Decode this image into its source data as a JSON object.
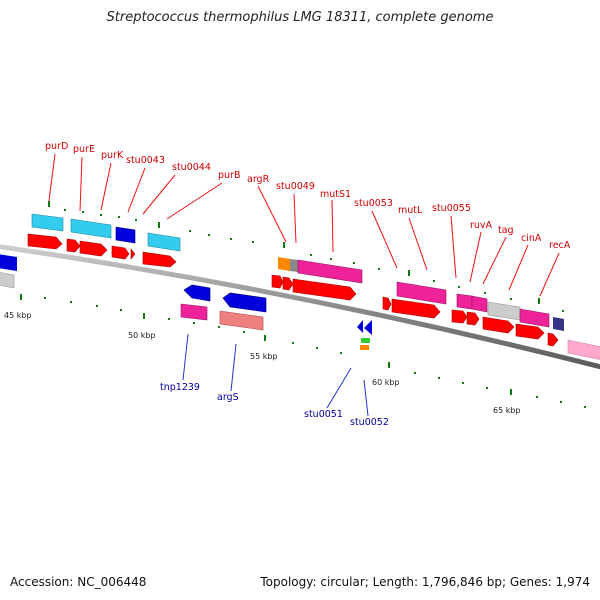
{
  "header": {
    "title": "Streptococcus thermophilus LMG 18311, complete genome"
  },
  "footer": {
    "accession": "Accession: NC_006448",
    "topology": "Topology: circular; Length: 1,796,846 bp; Genes: 1,974"
  },
  "scale_labels": [
    "45 kbp",
    "50 kbp",
    "55 kbp",
    "60 kbp",
    "65 kbp"
  ],
  "genes_top": [
    "purD",
    "purE",
    "purK",
    "stu0043",
    "stu0044",
    "purB",
    "argR",
    "stu0049",
    "mutS1",
    "stu0053",
    "mutL",
    "stu0055",
    "ruvA",
    "tag",
    "cinA",
    "recA"
  ],
  "genes_bottom": [
    "tnp1239",
    "argS",
    "stu0051",
    "stu0052"
  ],
  "colors": {
    "cds_red": "#ff0000",
    "cyan": "#33ccee",
    "blue": "#0000dd",
    "magenta": "#ee2299",
    "gray": "#cccccc",
    "salmon": "#ee8080",
    "orange": "#ff8800",
    "green": "#33cc33",
    "pink": "#ffaacc",
    "navy": "#333388",
    "label_red": "#cc0000",
    "label_blue": "#000099",
    "tick_green": "#117711"
  }
}
